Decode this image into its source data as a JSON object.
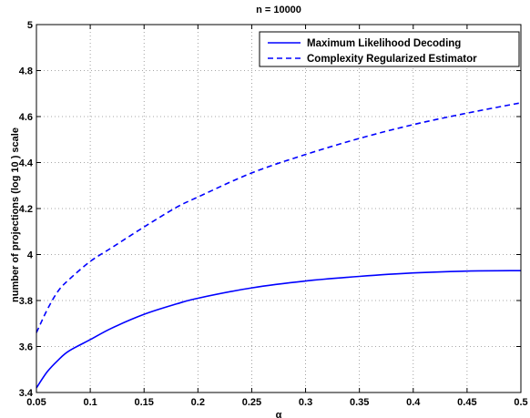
{
  "chart_data": {
    "type": "line",
    "title": "n = 10000",
    "xlabel": "α",
    "ylabel": "number of projections (log 10 ) scale",
    "xlim": [
      0.05,
      0.5
    ],
    "ylim": [
      3.4,
      5.0
    ],
    "x_ticks": [
      0.05,
      0.1,
      0.15,
      0.2,
      0.25,
      0.3,
      0.35,
      0.4,
      0.45,
      0.5
    ],
    "x_tick_labels": [
      "0.05",
      "0.1",
      "0.15",
      "0.2",
      "0.25",
      "0.3",
      "0.35",
      "0.4",
      "0.45",
      "0.5"
    ],
    "y_ticks": [
      3.4,
      3.6,
      3.8,
      4.0,
      4.2,
      4.4,
      4.6,
      4.8,
      5.0
    ],
    "y_tick_labels": [
      "3.4",
      "3.6",
      "3.8",
      "4",
      "4.2",
      "4.4",
      "4.6",
      "4.8",
      "5"
    ],
    "grid": true,
    "legend_position": "top-right",
    "series": [
      {
        "name": "Maximum Likelihood Decoding",
        "color": "#0000ff",
        "style": "solid",
        "x": [
          0.05,
          0.06,
          0.07,
          0.08,
          0.1,
          0.12,
          0.15,
          0.18,
          0.2,
          0.25,
          0.3,
          0.35,
          0.4,
          0.45,
          0.5
        ],
        "y": [
          3.42,
          3.49,
          3.54,
          3.58,
          3.63,
          3.68,
          3.74,
          3.785,
          3.81,
          3.855,
          3.885,
          3.905,
          3.92,
          3.928,
          3.93
        ]
      },
      {
        "name": "Complexity Regularized Estimator",
        "color": "#0000ff",
        "style": "dashed",
        "x": [
          0.05,
          0.06,
          0.07,
          0.08,
          0.1,
          0.12,
          0.15,
          0.18,
          0.2,
          0.25,
          0.3,
          0.35,
          0.4,
          0.45,
          0.5
        ],
        "y": [
          3.66,
          3.76,
          3.84,
          3.89,
          3.97,
          4.03,
          4.12,
          4.205,
          4.25,
          4.355,
          4.435,
          4.505,
          4.565,
          4.615,
          4.66
        ]
      }
    ]
  }
}
